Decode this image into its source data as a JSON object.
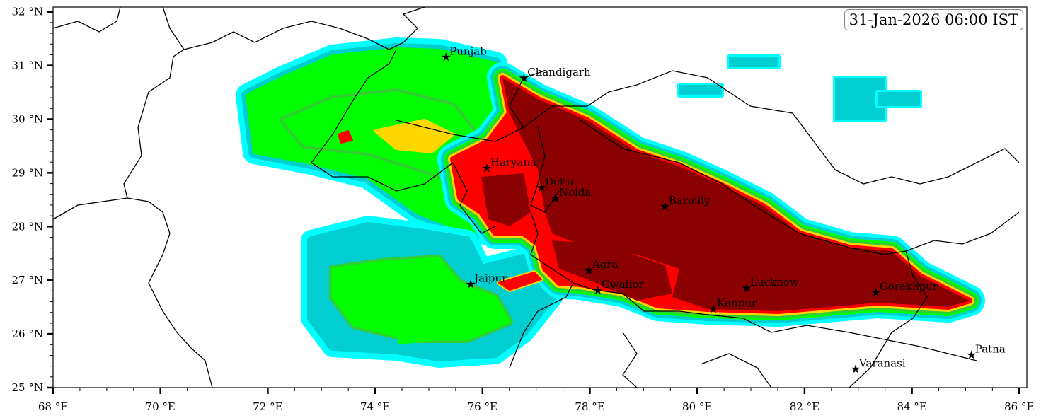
{
  "timestamp": "31-Jan-2026 06:00 IST",
  "axes": {
    "x_ticks": [
      {
        "value": 68,
        "label": "68 °E"
      },
      {
        "value": 70,
        "label": "70 °E"
      },
      {
        "value": 72,
        "label": "72 °E"
      },
      {
        "value": 74,
        "label": "74 °E"
      },
      {
        "value": 76,
        "label": "76 °E"
      },
      {
        "value": 78,
        "label": "78 °E"
      },
      {
        "value": 80,
        "label": "80 °E"
      },
      {
        "value": 82,
        "label": "82 °E"
      },
      {
        "value": 84,
        "label": "84 °E"
      },
      {
        "value": 86,
        "label": "86 °E"
      }
    ],
    "y_ticks": [
      {
        "value": 25,
        "label": "25 °N"
      },
      {
        "value": 26,
        "label": "26 °N"
      },
      {
        "value": 27,
        "label": "27 °N"
      },
      {
        "value": 28,
        "label": "28 °N"
      },
      {
        "value": 29,
        "label": "29 °N"
      },
      {
        "value": 30,
        "label": "30 °N"
      },
      {
        "value": 31,
        "label": "31 °N"
      },
      {
        "value": 32,
        "label": "32 °N"
      }
    ],
    "lon_range": [
      68,
      86.15
    ],
    "lat_range": [
      25,
      32.1
    ]
  },
  "cities": [
    {
      "name": "Punjab",
      "lon": 75.32,
      "lat": 31.16
    },
    {
      "name": "Chandigarh",
      "lon": 76.77,
      "lat": 30.77
    },
    {
      "name": "Haryana",
      "lon": 76.08,
      "lat": 29.09
    },
    {
      "name": "Delhi",
      "lon": 77.1,
      "lat": 28.73
    },
    {
      "name": "Noida",
      "lon": 77.36,
      "lat": 28.53
    },
    {
      "name": "Bareilly",
      "lon": 79.4,
      "lat": 28.38
    },
    {
      "name": "Agra",
      "lon": 77.98,
      "lat": 27.19
    },
    {
      "name": "Jaipur",
      "lon": 75.78,
      "lat": 26.93
    },
    {
      "name": "Gwalior",
      "lon": 78.15,
      "lat": 26.82
    },
    {
      "name": "Lucknow",
      "lon": 80.92,
      "lat": 26.86
    },
    {
      "name": "Kanpur",
      "lon": 80.3,
      "lat": 26.47
    },
    {
      "name": "Gorakhpur",
      "lon": 83.33,
      "lat": 26.78
    },
    {
      "name": "Varanasi",
      "lon": 82.95,
      "lat": 25.35
    },
    {
      "name": "Patna",
      "lon": 85.11,
      "lat": 25.61
    }
  ],
  "colors": {
    "level1": "#00FFFF",
    "level2": "#00CED1",
    "level3": "#00FF00",
    "level4": "#32CD32",
    "level5": "#FFD700",
    "level6": "#FF0000",
    "level7": "#8B0000"
  }
}
